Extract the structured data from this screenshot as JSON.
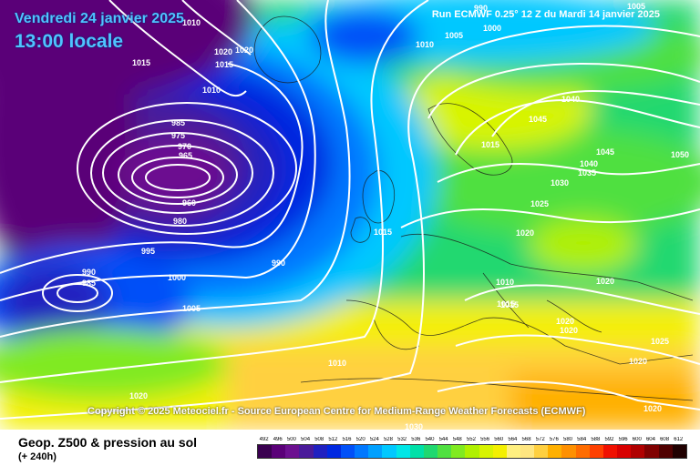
{
  "header": {
    "valid_date": "Vendredi 24 janvier 2025",
    "local_time": "13:00 locale",
    "run_info": "Run ECMWF 0.25° 12 Z du Mardi 14 janvier 2025"
  },
  "copyright": "Copyright © 2025 Meteociel.fr - Source European Centre for Medium-Range Weather Forecasts (ECMWF)",
  "footer": {
    "title": "Geop. Z500 & pression au sol",
    "subtitle": "(+ 240h)"
  },
  "color_scale": {
    "labels": [
      "492",
      "496",
      "500",
      "504",
      "508",
      "512",
      "516",
      "520",
      "524",
      "528",
      "532",
      "536",
      "540",
      "544",
      "548",
      "552",
      "556",
      "560",
      "564",
      "568",
      "572",
      "576",
      "580",
      "584",
      "588",
      "592",
      "596",
      "600",
      "604",
      "608",
      "612"
    ],
    "colors": [
      "#3a0050",
      "#5a0078",
      "#6c1090",
      "#4a1a9a",
      "#2020c0",
      "#0028e0",
      "#0050f8",
      "#0078ff",
      "#00a0ff",
      "#00c8ff",
      "#00e6e6",
      "#00e0a8",
      "#20d870",
      "#50e040",
      "#80ea20",
      "#b0f000",
      "#d8f400",
      "#f4f000",
      "#fff080",
      "#ffe680",
      "#ffd040",
      "#ffb000",
      "#ff9000",
      "#ff6c00",
      "#ff4000",
      "#f01000",
      "#d80000",
      "#b00000",
      "#800000",
      "#500000",
      "#200000"
    ]
  },
  "isobar_labels": [
    "990",
    "1000",
    "1005",
    "1010",
    "1015",
    "1020",
    "1020",
    "1010",
    "1005",
    "1010",
    "1015",
    "1015",
    "985",
    "975",
    "970",
    "965",
    "960",
    "980",
    "995",
    "990",
    "985",
    "990",
    "1000",
    "1005",
    "1010",
    "1015",
    "1020",
    "1040",
    "1045",
    "1015",
    "1045",
    "1050",
    "1040",
    "1035",
    "1030",
    "1025",
    "1020",
    "1010",
    "1015",
    "1020",
    "1020",
    "1020",
    "1025",
    "1020",
    "1020",
    "1030"
  ]
}
